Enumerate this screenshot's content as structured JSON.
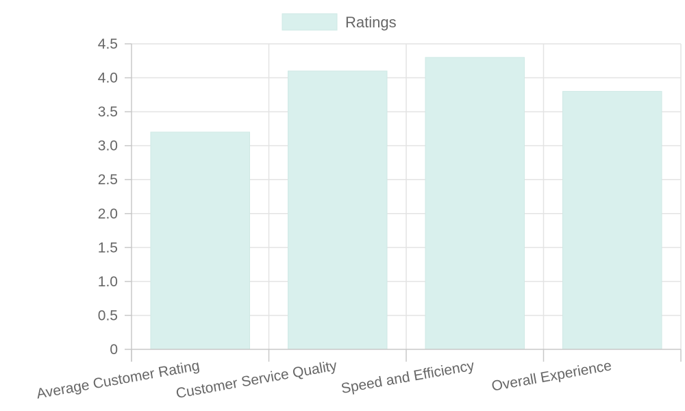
{
  "chart_data": {
    "type": "bar",
    "categories": [
      "Average Customer Rating",
      "Customer Service Quality",
      "Speed and Efficiency",
      "Overall Experience"
    ],
    "series": [
      {
        "name": "Ratings",
        "values": [
          3.2,
          4.1,
          4.3,
          3.8
        ]
      }
    ],
    "y_ticks": [
      "0",
      "0.5",
      "1.0",
      "1.5",
      "2.0",
      "2.5",
      "3.0",
      "3.5",
      "4.0",
      "4.5"
    ],
    "ylim": [
      0,
      4.5
    ],
    "grid": true,
    "legend_position": "top-center",
    "bar_color": "#d9f0ed",
    "bar_border_color": "#cfe9e5"
  }
}
